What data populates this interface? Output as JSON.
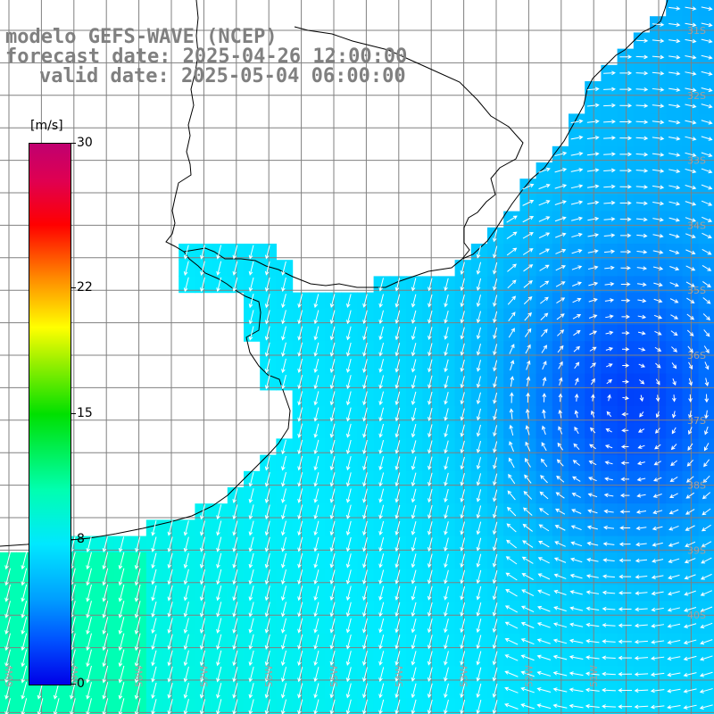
{
  "header": {
    "line1": "modelo GEFS-WAVE (NCEP)",
    "line2": "forecast date: 2025-04-26 12:00:00",
    "line3": "valid date: 2025-05-04 06:00:00"
  },
  "colorbar": {
    "units": "[m/s]",
    "ticks": [
      "30",
      "22",
      "15",
      "8",
      "0"
    ],
    "tick_values": [
      30,
      22,
      15,
      8,
      0
    ],
    "min": 0,
    "max": 30
  },
  "map": {
    "lat_labels": [
      "31S",
      "32S",
      "33S",
      "34S",
      "35S",
      "36S",
      "37S",
      "38S",
      "39S",
      "40S"
    ],
    "lon_labels": [
      "60W",
      "59W",
      "58W",
      "57W",
      "56W",
      "55W",
      "54W",
      "53W",
      "52W",
      "51W"
    ],
    "lon_range": [
      -61,
      -50
    ],
    "lat_range": [
      -41,
      -31
    ],
    "colors": {
      "land": "#ffffff",
      "grid": "#808080",
      "coast": "#000000",
      "arrows": "#ffffff",
      "labels": "#a0a0a0"
    }
  }
}
